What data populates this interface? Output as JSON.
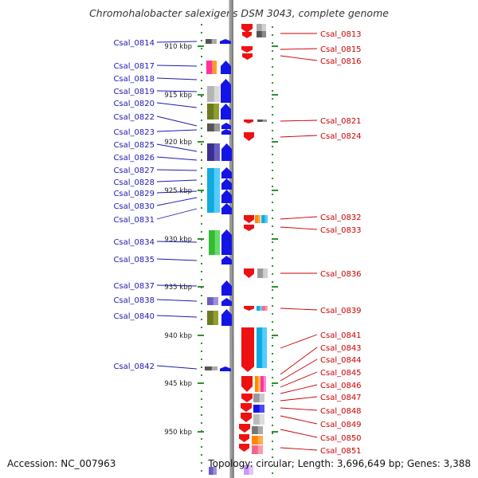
{
  "title": "Chromohalobacter salexigens DSM 3043, complete genome",
  "footer": {
    "accession": "Accession: NC_007963",
    "topology": "Topology: circular; Length: 3,696,649 bp; Genes: 3,388"
  },
  "colors": {
    "left_label": "#1a1ab0",
    "right_label": "#cc0000",
    "forward_gene": "#1414e6",
    "reverse_gene": "#ee1111",
    "tick": "#2f8f2f",
    "backbone": "#808080"
  },
  "scale_labels": [
    "910 kbp",
    "915 kbp",
    "920 kbp",
    "925 kbp",
    "930 kbp",
    "935 kbp",
    "940 kbp",
    "945 kbp",
    "950 kbp"
  ],
  "left_genes": [
    "Csal_0814",
    "Csal_0817",
    "Csal_0818",
    "Csal_0819",
    "Csal_0820",
    "Csal_0822",
    "Csal_0823",
    "Csal_0825",
    "Csal_0826",
    "Csal_0827",
    "Csal_0828",
    "Csal_0829",
    "Csal_0830",
    "Csal_0831",
    "Csal_0834",
    "Csal_0835",
    "Csal_0837",
    "Csal_0838",
    "Csal_0840",
    "Csal_0842"
  ],
  "right_genes": [
    "Csal_0813",
    "Csal_0815",
    "Csal_0816",
    "Csal_0821",
    "Csal_0824",
    "Csal_0832",
    "Csal_0833",
    "Csal_0836",
    "Csal_0839",
    "Csal_0841",
    "Csal_0843",
    "Csal_0844",
    "Csal_0845",
    "Csal_0846",
    "Csal_0847",
    "Csal_0848",
    "Csal_0849",
    "Csal_0850",
    "Csal_0851"
  ]
}
